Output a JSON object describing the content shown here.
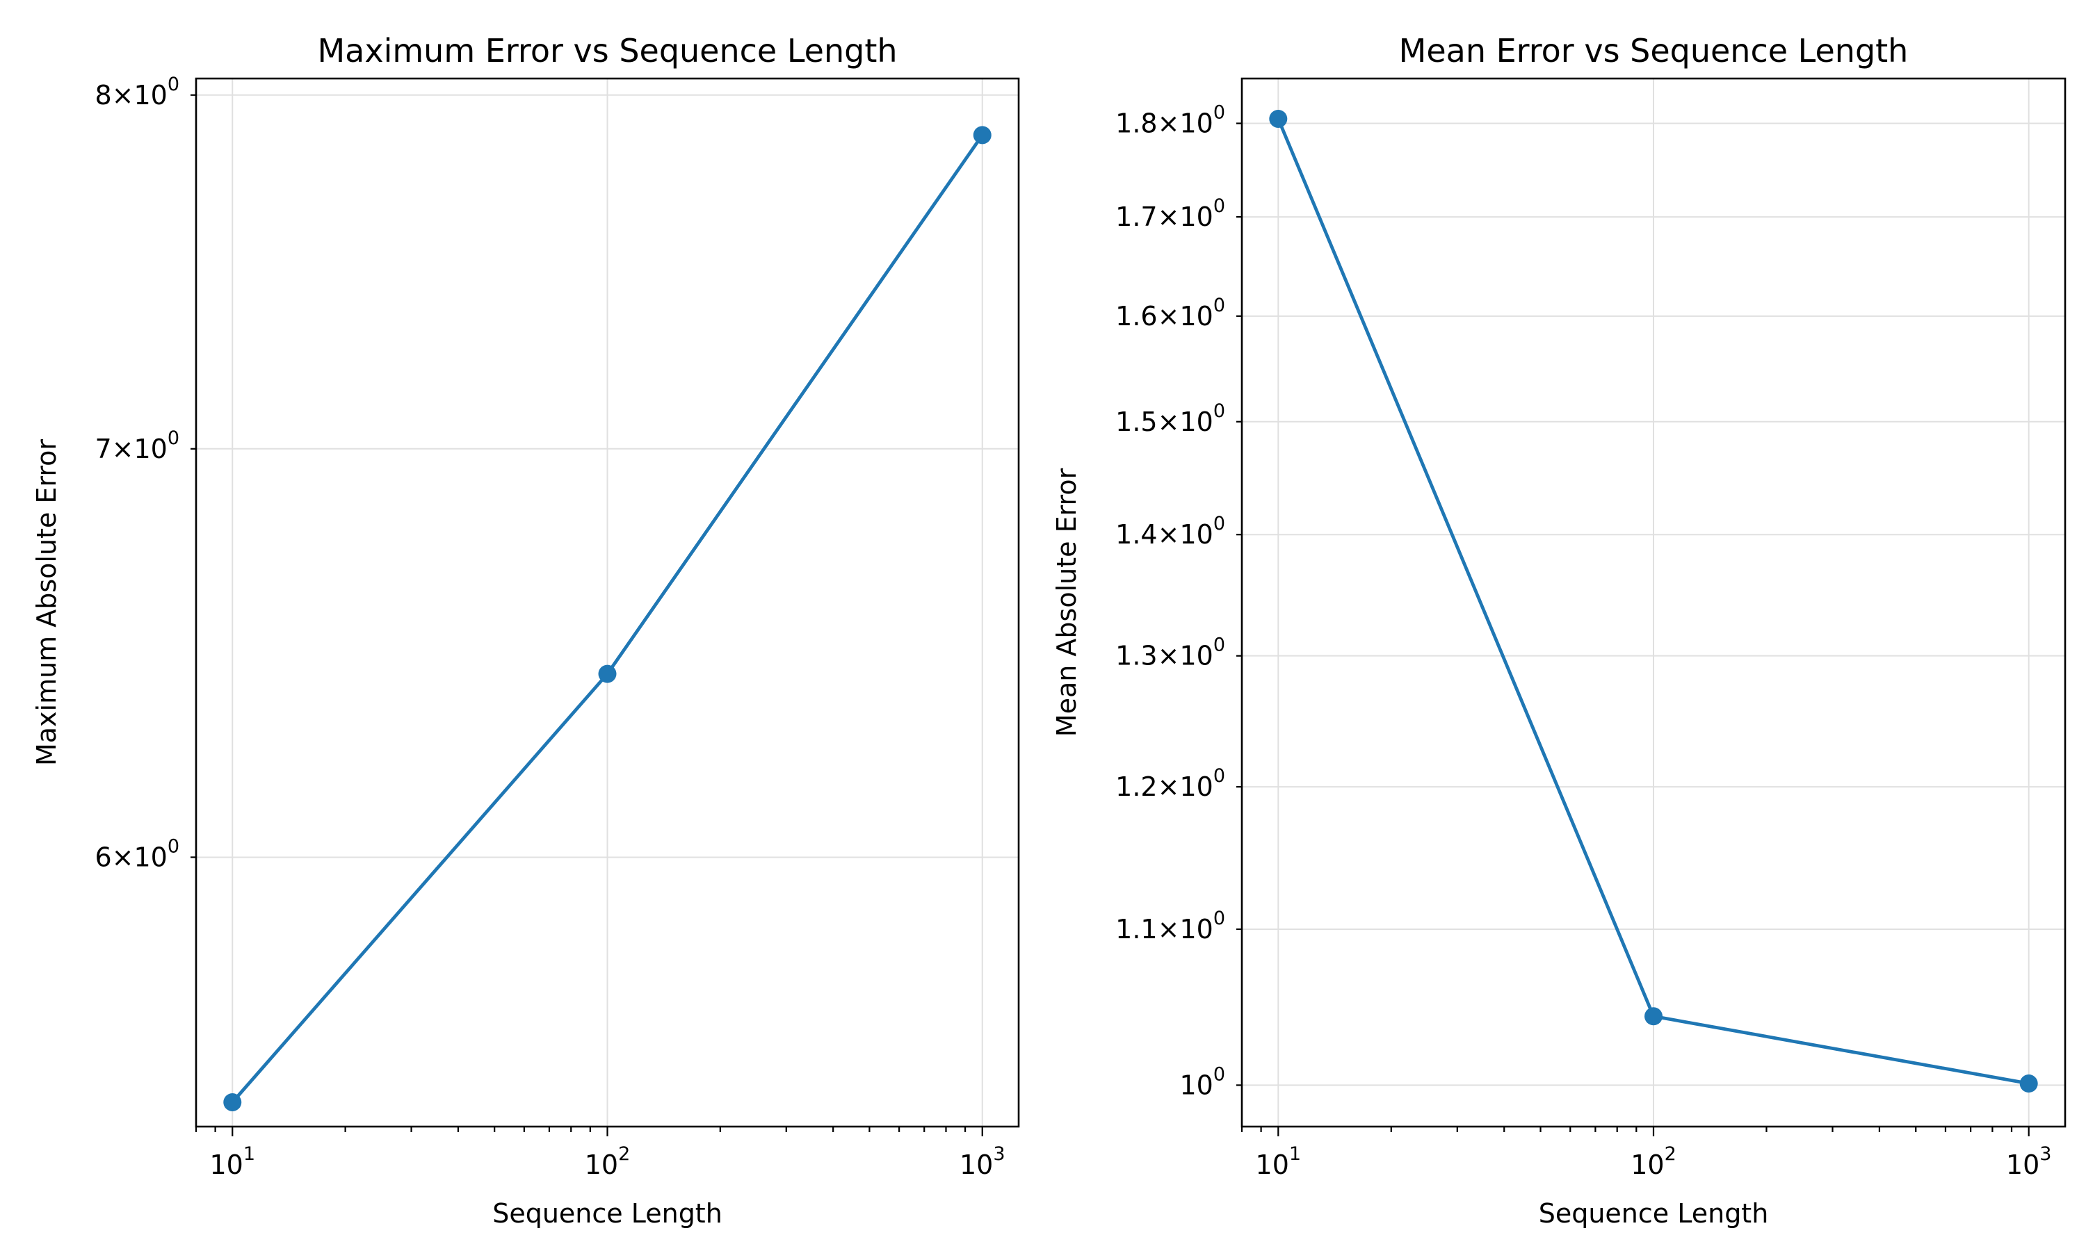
{
  "colors": {
    "series": "#1f77b4",
    "grid": "#e0e0e0"
  },
  "chart_data": [
    {
      "type": "line",
      "title": "Maximum Error vs Sequence Length",
      "xlabel": "Sequence Length",
      "ylabel": "Maximum Absolute Error",
      "xscale": "log",
      "yscale": "log",
      "grid": true,
      "xlim": [
        8,
        1250
      ],
      "ylim": [
        5.42,
        8.05
      ],
      "x": [
        10,
        100,
        1000
      ],
      "series": [
        {
          "values": [
            5.47,
            6.43,
            7.88
          ]
        }
      ],
      "xticks": [
        {
          "value": 10,
          "base": "10",
          "exp": "1"
        },
        {
          "value": 100,
          "base": "10",
          "exp": "2"
        },
        {
          "value": 1000,
          "base": "10",
          "exp": "3"
        }
      ],
      "yticks": [
        {
          "value": 6,
          "base": "6×10",
          "exp": "0"
        },
        {
          "value": 7,
          "base": "7×10",
          "exp": "0"
        },
        {
          "value": 8,
          "base": "8×10",
          "exp": "0"
        }
      ]
    },
    {
      "type": "line",
      "title": "Mean Error vs Sequence Length",
      "xlabel": "Sequence Length",
      "ylabel": "Mean Absolute Error",
      "xscale": "log",
      "yscale": "log",
      "grid": true,
      "xlim": [
        8,
        1250
      ],
      "ylim": [
        0.975,
        1.85
      ],
      "x": [
        10,
        100,
        1000
      ],
      "series": [
        {
          "values": [
            1.805,
            1.043,
            1.001
          ]
        }
      ],
      "xticks": [
        {
          "value": 10,
          "base": "10",
          "exp": "1"
        },
        {
          "value": 100,
          "base": "10",
          "exp": "2"
        },
        {
          "value": 1000,
          "base": "10",
          "exp": "3"
        }
      ],
      "yticks": [
        {
          "value": 1.0,
          "base": "10",
          "exp": "0"
        },
        {
          "value": 1.1,
          "base": "1.1×10",
          "exp": "0"
        },
        {
          "value": 1.2,
          "base": "1.2×10",
          "exp": "0"
        },
        {
          "value": 1.3,
          "base": "1.3×10",
          "exp": "0"
        },
        {
          "value": 1.4,
          "base": "1.4×10",
          "exp": "0"
        },
        {
          "value": 1.5,
          "base": "1.5×10",
          "exp": "0"
        },
        {
          "value": 1.6,
          "base": "1.6×10",
          "exp": "0"
        },
        {
          "value": 1.7,
          "base": "1.7×10",
          "exp": "0"
        },
        {
          "value": 1.8,
          "base": "1.8×10",
          "exp": "0"
        }
      ]
    }
  ]
}
